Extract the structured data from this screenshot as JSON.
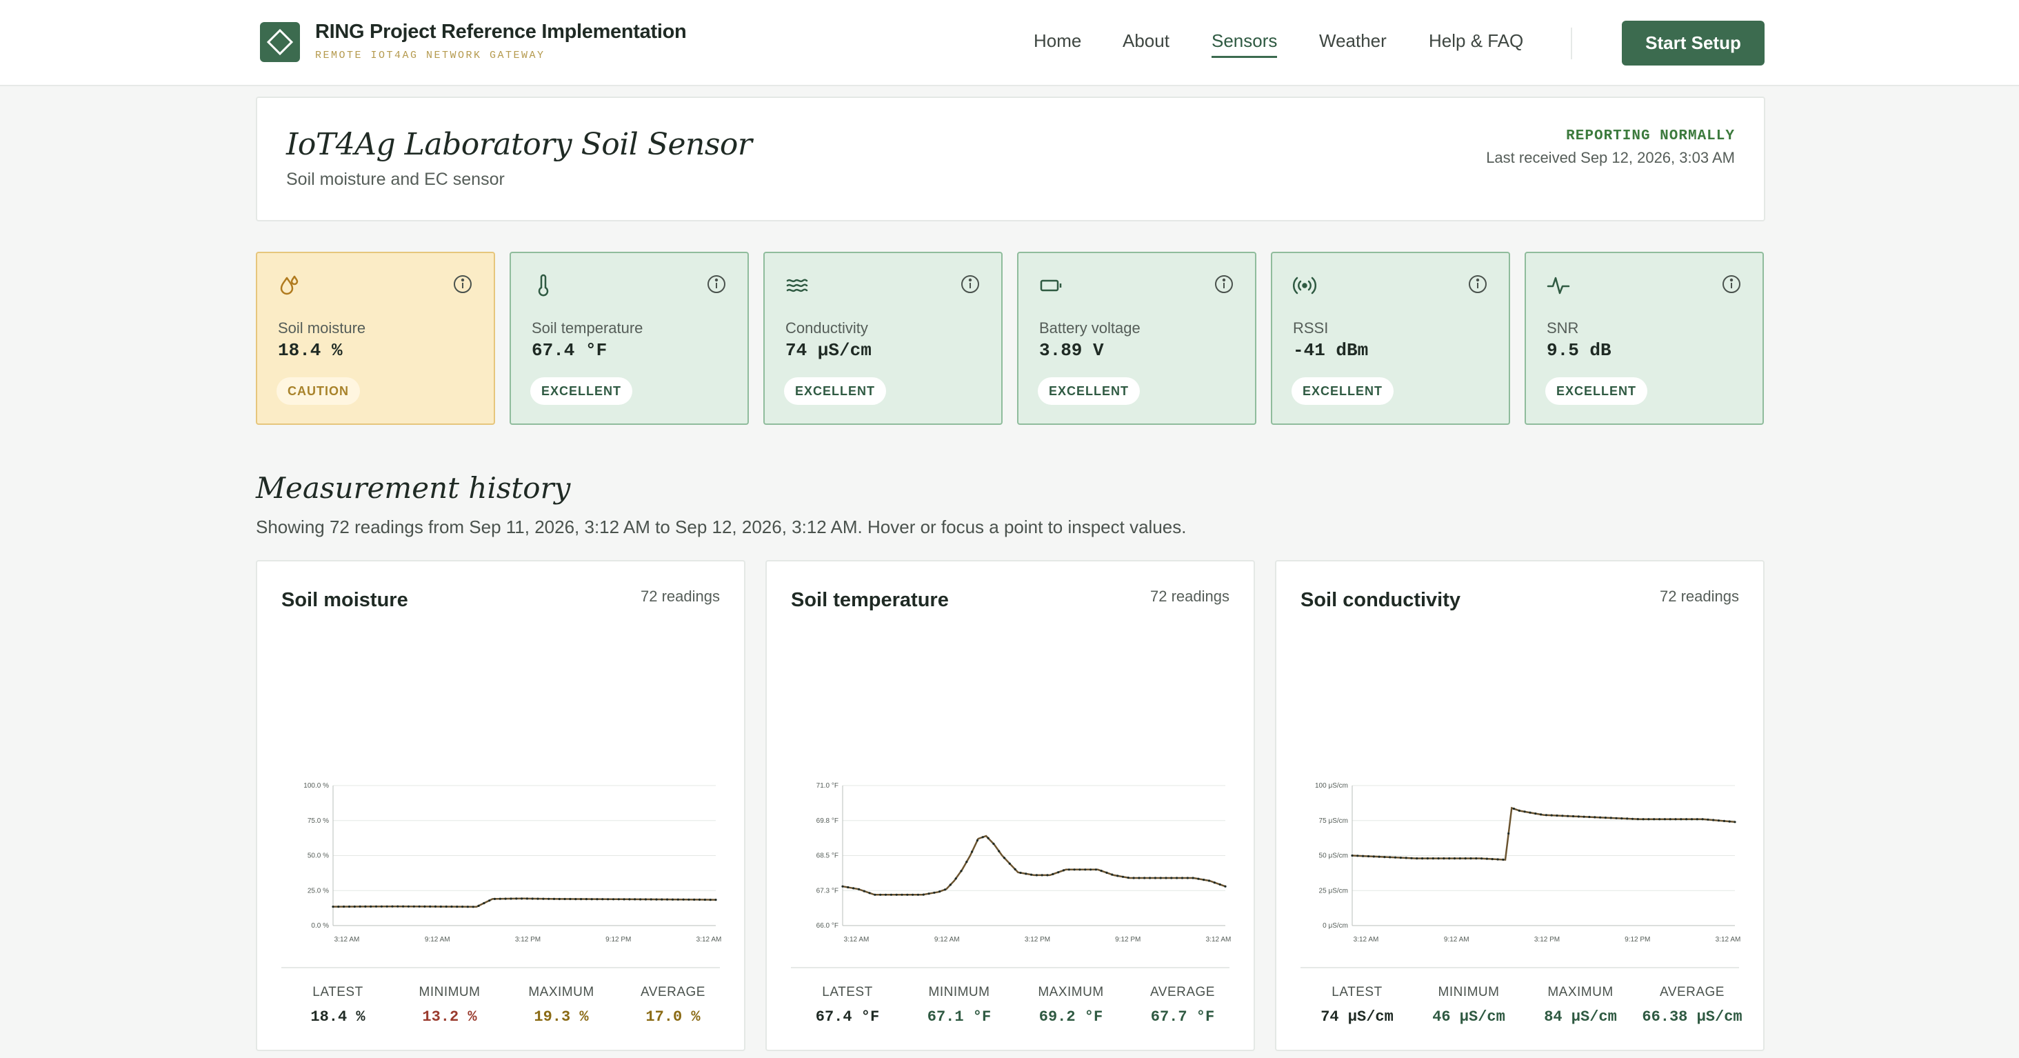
{
  "brand": {
    "title": "RING Project Reference Implementation",
    "subtitle": "REMOTE IOT4AG NETWORK GATEWAY"
  },
  "nav": {
    "items": [
      "Home",
      "About",
      "Sensors",
      "Weather",
      "Help & FAQ"
    ],
    "active": "Sensors",
    "cta": "Start Setup"
  },
  "hero": {
    "title": "IoT4Ag Laboratory Soil Sensor",
    "subtitle": "Soil moisture and EC sensor",
    "status": "REPORTING NORMALLY",
    "last_received": "Last received Sep 12, 2026, 3:03 AM"
  },
  "metrics": [
    {
      "label": "Soil moisture",
      "value": "18.4 %",
      "badge": "CAUTION",
      "icon": "droplet-icon"
    },
    {
      "label": "Soil temperature",
      "value": "67.4 °F",
      "badge": "EXCELLENT",
      "icon": "thermometer-icon"
    },
    {
      "label": "Conductivity",
      "value": "74 μS/cm",
      "badge": "EXCELLENT",
      "icon": "waves-icon"
    },
    {
      "label": "Battery voltage",
      "value": "3.89 V",
      "badge": "EXCELLENT",
      "icon": "battery-icon"
    },
    {
      "label": "RSSI",
      "value": "-41 dBm",
      "badge": "EXCELLENT",
      "icon": "signal-icon"
    },
    {
      "label": "SNR",
      "value": "9.5 dB",
      "badge": "EXCELLENT",
      "icon": "pulse-icon"
    }
  ],
  "colors": {
    "accent": "#3c6b4f",
    "caution_bg": "#fbecc6",
    "excellent_bg": "#e1efe5",
    "line_brown": "#6b5430",
    "point_dark": "#1f2a24",
    "min_value": "#9a3b2e",
    "max_value": "#8a6a14"
  },
  "history": {
    "title": "Measurement history",
    "description": "Showing 72 readings from Sep 11, 2026, 3:12 AM to Sep 12, 2026, 3:12 AM. Hover or focus a point to inspect values."
  },
  "stat_labels": {
    "latest": "LATEST",
    "minimum": "MINIMUM",
    "maximum": "MAXIMUM",
    "average": "AVERAGE"
  },
  "panels": [
    {
      "title": "Soil moisture",
      "count": "72 readings",
      "stats": {
        "latest": "18.4 %",
        "minimum": "13.2 %",
        "maximum": "19.3 %",
        "average": "17.0 %"
      }
    },
    {
      "title": "Soil temperature",
      "count": "72 readings",
      "stats": {
        "latest": "67.4 °F",
        "minimum": "67.1 °F",
        "maximum": "69.2 °F",
        "average": "67.7 °F"
      }
    },
    {
      "title": "Soil conductivity",
      "count": "72 readings",
      "stats": {
        "latest": "74 μS/cm",
        "minimum": "46 μS/cm",
        "maximum": "84 μS/cm",
        "average": "66.38 μS/cm"
      }
    }
  ],
  "chart_data": [
    {
      "type": "line",
      "title": "Soil moisture",
      "x_ticks": [
        "3:12 AM",
        "9:12 AM",
        "3:12 PM",
        "9:12 PM",
        "3:12 AM"
      ],
      "y_ticks": [
        "0.0 %",
        "25.0 %",
        "50.0 %",
        "75.0 %",
        "100.0 %"
      ],
      "ylim": [
        0,
        100
      ],
      "grid": true,
      "x_hours": [
        0,
        2,
        4,
        6,
        8,
        9,
        10,
        11,
        12,
        14,
        18,
        22,
        24
      ],
      "values": [
        13.5,
        13.6,
        13.7,
        13.6,
        13.5,
        13.4,
        19.0,
        19.2,
        19.3,
        19.0,
        18.8,
        18.6,
        18.4
      ]
    },
    {
      "type": "line",
      "title": "Soil temperature",
      "x_ticks": [
        "3:12 AM",
        "9:12 AM",
        "3:12 PM",
        "9:12 PM",
        "3:12 AM"
      ],
      "y_ticks": [
        "66.0 °F",
        "67.3 °F",
        "68.5 °F",
        "69.8 °F",
        "71.0 °F"
      ],
      "ylim": [
        66,
        71
      ],
      "grid": true,
      "x_hours": [
        0,
        1,
        2,
        3,
        4,
        5,
        6,
        6.5,
        7,
        7.5,
        8,
        8.5,
        9,
        9.5,
        10,
        10.5,
        11,
        12,
        13,
        14,
        15,
        16,
        17,
        18,
        19,
        20,
        21,
        22,
        23,
        24
      ],
      "values": [
        67.4,
        67.3,
        67.1,
        67.1,
        67.1,
        67.1,
        67.2,
        67.3,
        67.6,
        68.0,
        68.5,
        69.1,
        69.2,
        68.9,
        68.5,
        68.2,
        67.9,
        67.8,
        67.8,
        68.0,
        68.0,
        68.0,
        67.8,
        67.7,
        67.7,
        67.7,
        67.7,
        67.7,
        67.6,
        67.4
      ]
    },
    {
      "type": "line",
      "title": "Soil conductivity",
      "x_ticks": [
        "3:12 AM",
        "9:12 AM",
        "3:12 PM",
        "9:12 PM",
        "3:12 AM"
      ],
      "y_ticks": [
        "0 μS/cm",
        "25 μS/cm",
        "50 μS/cm",
        "75 μS/cm",
        "100 μS/cm"
      ],
      "ylim": [
        0,
        100
      ],
      "grid": true,
      "x_hours": [
        0,
        2,
        4,
        6,
        8,
        9.6,
        10,
        10.5,
        11,
        12,
        14,
        16,
        18,
        20,
        22,
        24
      ],
      "values": [
        50,
        49,
        48,
        48,
        48,
        47,
        84,
        82,
        81,
        79,
        78,
        77,
        76,
        76,
        76,
        74
      ]
    }
  ]
}
